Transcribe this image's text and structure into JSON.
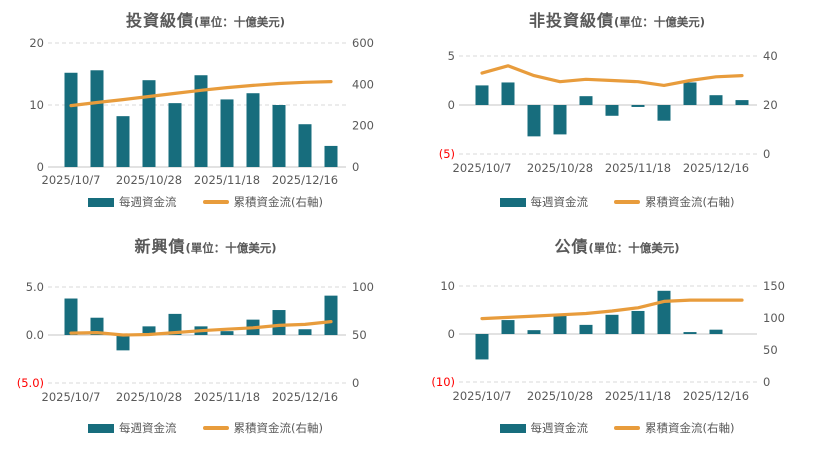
{
  "colors": {
    "bar": "#176D7D",
    "line": "#E89C3C",
    "text": "#595959",
    "negative_tick": "#FF0000",
    "gridline": "#D9D9D9",
    "zero_line": "#C6C6C6",
    "background": "#FFFFFF"
  },
  "chart_data": [
    {
      "type": "bar",
      "subtype": "bar-line-combo",
      "title": "投資級債",
      "unit_label": "(單位：十億美元)",
      "x_tick_labels": [
        "2025/10/7",
        "2025/10/28",
        "2025/11/18",
        "2025/12/16"
      ],
      "x_tick_slot_indices": [
        0,
        3,
        6,
        9
      ],
      "n_slots": 11,
      "series": [
        {
          "name": "每週資金流",
          "type": "bar",
          "axis": "left",
          "values": [
            15.2,
            15.6,
            8.2,
            14.0,
            10.3,
            14.8,
            10.9,
            11.9,
            10.0,
            6.9,
            3.4
          ]
        },
        {
          "name": "累積資金流(右軸)",
          "type": "line",
          "axis": "right",
          "values": [
            297,
            312,
            326,
            341,
            356,
            371,
            384,
            395,
            404,
            410,
            413
          ]
        }
      ],
      "left_axis": {
        "range": [
          0,
          20
        ],
        "ticks": [
          {
            "label": "20",
            "value": 20
          },
          {
            "label": "10",
            "value": 10
          },
          {
            "label": "0",
            "value": 0
          }
        ]
      },
      "right_axis": {
        "range": [
          0,
          600
        ],
        "ticks": [
          {
            "label": "600",
            "value": 600
          },
          {
            "label": "400",
            "value": 400
          },
          {
            "label": "200",
            "value": 200
          },
          {
            "label": "0",
            "value": 0
          }
        ]
      },
      "legend": [
        "每週資金流",
        "累積資金流(右軸)"
      ],
      "legend_position": "bottom",
      "grid": "horizontal-dashed"
    },
    {
      "type": "bar",
      "subtype": "bar-line-combo",
      "title": "非投資級債",
      "unit_label": "(單位：十億美元)",
      "x_tick_labels": [
        "2025/10/7",
        "2025/10/28",
        "2025/11/18",
        "2025/12/16"
      ],
      "x_tick_slot_indices": [
        0,
        3,
        6,
        9
      ],
      "n_slots": 11,
      "series": [
        {
          "name": "每週資金流",
          "type": "bar",
          "axis": "left",
          "values": [
            2.0,
            2.3,
            -3.2,
            -3.0,
            0.9,
            -1.1,
            -0.2,
            -1.6,
            2.3,
            1.0,
            0.5
          ]
        },
        {
          "name": "累積資金流(右軸)",
          "type": "line",
          "axis": "right",
          "values": [
            33,
            36,
            32,
            29.5,
            30.5,
            30,
            29.5,
            28,
            30,
            31.5,
            32
          ]
        }
      ],
      "left_axis": {
        "range": [
          -5,
          5
        ],
        "ticks": [
          {
            "label": "5",
            "value": 5
          },
          {
            "label": "0",
            "value": 0
          },
          {
            "label": "(5)",
            "value": -5
          }
        ]
      },
      "right_axis": {
        "range": [
          0,
          40
        ],
        "ticks": [
          {
            "label": "40",
            "value": 40
          },
          {
            "label": "20",
            "value": 20
          },
          {
            "label": "0",
            "value": 0
          }
        ]
      },
      "legend": [
        "每週資金流",
        "累積資金流(右軸)"
      ],
      "legend_position": "bottom",
      "grid": "horizontal-dashed"
    },
    {
      "type": "bar",
      "subtype": "bar-line-combo",
      "title": "新興債",
      "unit_label": "(單位：十億美元)",
      "x_tick_labels": [
        "2025/10/7",
        "2025/10/28",
        "2025/11/18",
        "2025/12/16"
      ],
      "x_tick_slot_indices": [
        0,
        3,
        6,
        9
      ],
      "n_slots": 11,
      "series": [
        {
          "name": "每週資金流",
          "type": "bar",
          "axis": "left",
          "values": [
            3.8,
            1.8,
            -1.6,
            0.9,
            2.2,
            0.9,
            0.4,
            1.6,
            2.6,
            0.6,
            4.1
          ]
        },
        {
          "name": "累積資金流(右軸)",
          "type": "line",
          "axis": "right",
          "values": [
            52,
            52.5,
            50,
            50.5,
            52.5,
            54.5,
            56,
            57.5,
            60,
            61,
            64
          ]
        }
      ],
      "left_axis": {
        "range": [
          -5,
          5
        ],
        "ticks": [
          {
            "label": "5.0",
            "value": 5
          },
          {
            "label": "0.0",
            "value": 0
          },
          {
            "label": "(5.0)",
            "value": -5
          }
        ]
      },
      "right_axis": {
        "range": [
          0,
          100
        ],
        "ticks": [
          {
            "label": "100",
            "value": 100
          },
          {
            "label": "50",
            "value": 50
          },
          {
            "label": "0",
            "value": 0
          }
        ]
      },
      "legend": [
        "每週資金流",
        "累積資金流(右軸)"
      ],
      "legend_position": "bottom",
      "grid": "horizontal-dashed"
    },
    {
      "type": "bar",
      "subtype": "bar-line-combo",
      "title": "公債",
      "unit_label": "(單位：十億美元)",
      "x_tick_labels": [
        "2025/10/7",
        "2025/10/28",
        "2025/11/18",
        "2025/12/16"
      ],
      "x_tick_slot_indices": [
        0,
        3,
        6,
        9
      ],
      "n_slots": 11,
      "series": [
        {
          "name": "每週資金流",
          "type": "bar",
          "axis": "left",
          "values": [
            -5.3,
            2.9,
            0.8,
            3.8,
            1.9,
            4.0,
            4.8,
            9.0,
            0.4,
            0.9,
            0
          ]
        },
        {
          "name": "累積資金流(右軸)",
          "type": "line",
          "axis": "right",
          "values": [
            99,
            101,
            103,
            105,
            107,
            111,
            116,
            126,
            128,
            128,
            128
          ]
        }
      ],
      "left_axis": {
        "range": [
          -10,
          10
        ],
        "ticks": [
          {
            "label": "10",
            "value": 10
          },
          {
            "label": "0",
            "value": 0
          },
          {
            "label": "(10)",
            "value": -10
          }
        ]
      },
      "right_axis": {
        "range": [
          0,
          150
        ],
        "ticks": [
          {
            "label": "150",
            "value": 150
          },
          {
            "label": "100",
            "value": 100
          },
          {
            "label": "50",
            "value": 50
          },
          {
            "label": "0",
            "value": 0
          }
        ]
      },
      "legend": [
        "每週資金流",
        "累積資金流(右軸)"
      ],
      "legend_position": "bottom",
      "grid": "horizontal-dashed"
    }
  ]
}
